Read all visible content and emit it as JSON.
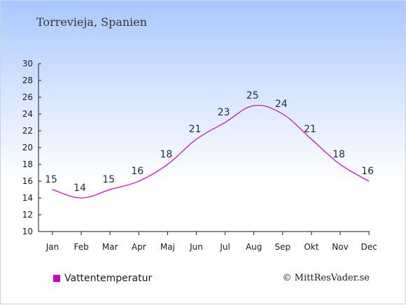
{
  "title": "Torrevieja, Spanien",
  "legend_label": "Vattentemperatur",
  "credit": "© MittResVader.se",
  "colors": {
    "series": "#cc00cc",
    "axis": "#1a1a1a"
  },
  "chart_data": {
    "type": "line",
    "categories": [
      "Jan",
      "Feb",
      "Mar",
      "Apr",
      "Maj",
      "Jun",
      "Jul",
      "Aug",
      "Sep",
      "Okt",
      "Nov",
      "Dec"
    ],
    "series": [
      {
        "name": "Vattentemperatur",
        "values": [
          15,
          14,
          15,
          16,
          18,
          21,
          23,
          25,
          24,
          21,
          18,
          16
        ]
      }
    ],
    "ylim": [
      10,
      30
    ],
    "yticks": [
      10,
      12,
      14,
      16,
      18,
      20,
      22,
      24,
      26,
      28,
      30
    ],
    "grid": false,
    "legend_position": "bottom-left"
  }
}
